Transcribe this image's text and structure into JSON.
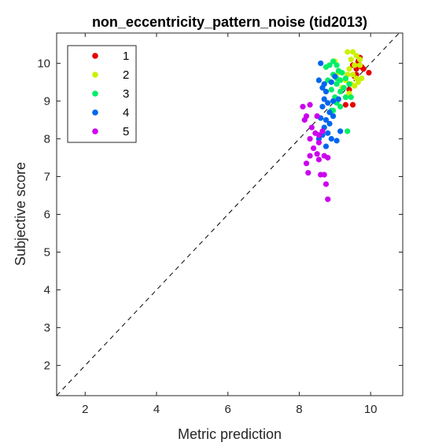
{
  "chart_data": {
    "type": "scatter",
    "title": "non_eccentricity_pattern_noise (tid2013)",
    "xlabel": "Metric prediction",
    "ylabel": "Subjective score",
    "xlim": [
      1.2,
      10.9
    ],
    "ylim": [
      1.2,
      10.8
    ],
    "xticks": [
      "2",
      "4",
      "6",
      "8",
      "10"
    ],
    "yticks": [
      "2",
      "3",
      "4",
      "5",
      "6",
      "7",
      "8",
      "9",
      "10"
    ],
    "grid": false,
    "reference_line": "diagonal y = x, dashed black",
    "legend_placement": "top-left",
    "series": [
      {
        "name": "1",
        "color": "#e60000",
        "points": [
          [
            9.55,
            9.65
          ],
          [
            9.6,
            9.85
          ],
          [
            9.75,
            9.9
          ],
          [
            9.65,
            10.05
          ],
          [
            9.7,
            10.15
          ],
          [
            9.8,
            9.85
          ],
          [
            9.95,
            9.75
          ],
          [
            9.4,
            9.3
          ],
          [
            9.3,
            8.9
          ],
          [
            9.5,
            8.9
          ],
          [
            9.6,
            9.7
          ],
          [
            9.5,
            9.95
          ]
        ]
      },
      {
        "name": "2",
        "color": "#ccf000",
        "points": [
          [
            9.35,
            10.3
          ],
          [
            9.5,
            10.3
          ],
          [
            9.6,
            10.2
          ],
          [
            9.45,
            10.1
          ],
          [
            9.55,
            9.95
          ],
          [
            9.7,
            9.95
          ],
          [
            9.4,
            9.85
          ],
          [
            9.35,
            9.7
          ],
          [
            9.5,
            9.7
          ],
          [
            9.6,
            9.6
          ],
          [
            9.75,
            9.6
          ],
          [
            9.3,
            9.55
          ],
          [
            9.45,
            9.45
          ],
          [
            9.55,
            9.4
          ],
          [
            9.2,
            9.35
          ],
          [
            9.0,
            10.05
          ],
          [
            9.7,
            10.1
          ],
          [
            9.1,
            9.75
          ],
          [
            9.65,
            9.5
          ],
          [
            9.4,
            9.2
          ]
        ]
      },
      {
        "name": "3",
        "color": "#00ee66",
        "points": [
          [
            8.95,
            10.05
          ],
          [
            8.85,
            9.95
          ],
          [
            8.75,
            9.9
          ],
          [
            9.05,
            9.95
          ],
          [
            9.1,
            9.8
          ],
          [
            9.2,
            9.75
          ],
          [
            8.95,
            9.7
          ],
          [
            9.05,
            9.6
          ],
          [
            9.15,
            9.55
          ],
          [
            9.3,
            9.6
          ],
          [
            9.4,
            9.45
          ],
          [
            9.25,
            9.35
          ],
          [
            9.15,
            9.25
          ],
          [
            9.3,
            9.1
          ],
          [
            9.45,
            9.1
          ],
          [
            9.0,
            9.1
          ],
          [
            8.9,
            9.3
          ],
          [
            9.05,
            8.95
          ],
          [
            8.9,
            8.75
          ],
          [
            8.95,
            8.75
          ],
          [
            8.8,
            9.55
          ],
          [
            9.05,
            9.45
          ],
          [
            9.35,
            8.2
          ],
          [
            9.15,
            8.85
          ]
        ]
      },
      {
        "name": "4",
        "color": "#0066ee",
        "points": [
          [
            8.6,
            10.0
          ],
          [
            8.55,
            9.55
          ],
          [
            8.65,
            9.35
          ],
          [
            8.75,
            9.25
          ],
          [
            8.9,
            9.5
          ],
          [
            8.7,
            9.05
          ],
          [
            8.8,
            8.95
          ],
          [
            8.95,
            9.0
          ],
          [
            9.1,
            9.05
          ],
          [
            8.85,
            8.7
          ],
          [
            8.65,
            8.85
          ],
          [
            8.6,
            8.55
          ],
          [
            8.75,
            8.5
          ],
          [
            8.85,
            8.4
          ],
          [
            8.7,
            8.3
          ],
          [
            8.8,
            8.15
          ],
          [
            8.65,
            8.1
          ],
          [
            8.55,
            8.0
          ],
          [
            8.9,
            8.0
          ],
          [
            9.05,
            7.95
          ],
          [
            9.15,
            8.2
          ],
          [
            8.75,
            7.8
          ],
          [
            8.7,
            9.45
          ],
          [
            9.0,
            9.65
          ],
          [
            8.95,
            8.6
          ]
        ]
      },
      {
        "name": "5",
        "color": "#cc00ee",
        "points": [
          [
            8.1,
            8.85
          ],
          [
            8.3,
            8.9
          ],
          [
            8.15,
            8.5
          ],
          [
            8.35,
            8.3
          ],
          [
            8.45,
            8.15
          ],
          [
            8.55,
            8.1
          ],
          [
            8.3,
            8.0
          ],
          [
            8.55,
            7.9
          ],
          [
            8.4,
            7.75
          ],
          [
            8.5,
            7.6
          ],
          [
            8.3,
            7.55
          ],
          [
            8.55,
            7.45
          ],
          [
            8.2,
            7.35
          ],
          [
            8.7,
            7.55
          ],
          [
            8.8,
            7.5
          ],
          [
            8.25,
            7.1
          ],
          [
            8.6,
            7.05
          ],
          [
            8.7,
            7.05
          ],
          [
            8.75,
            6.8
          ],
          [
            8.8,
            6.4
          ],
          [
            8.5,
            8.6
          ],
          [
            8.65,
            8.2
          ],
          [
            8.2,
            8.6
          ]
        ]
      }
    ]
  }
}
